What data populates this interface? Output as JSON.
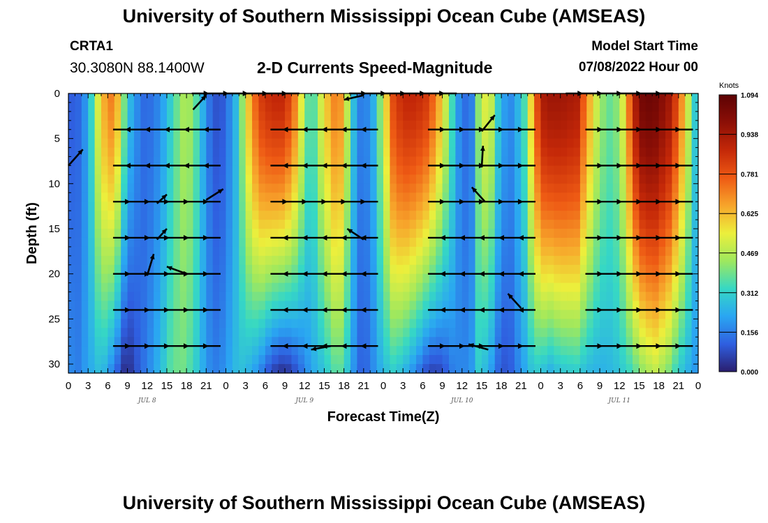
{
  "header": {
    "title": "University of Southern Mississippi Ocean Cube (AMSEAS)",
    "station": "CRTA1",
    "coordinates": "30.3080N  88.1400W",
    "subtitle": "2-D Currents Speed-Magnitude",
    "model_start_label": "Model Start Time",
    "model_start_value": "07/08/2022 Hour 00"
  },
  "footer": {
    "title": "University of Southern Mississippi Ocean Cube (AMSEAS)"
  },
  "chart_data": {
    "type": "heatmap",
    "title": "2-D Currents Speed-Magnitude",
    "xlabel": "Forecast Time(Z)",
    "ylabel": "Depth (ft)",
    "xlim": [
      0,
      96
    ],
    "ylim": [
      0,
      31
    ],
    "x_tick_labels": [
      "0",
      "3",
      "6",
      "9",
      "12",
      "15",
      "18",
      "21",
      "0",
      "3",
      "6",
      "9",
      "12",
      "15",
      "18",
      "21",
      "0",
      "3",
      "6",
      "9",
      "12",
      "15",
      "18",
      "21",
      "0",
      "3",
      "6",
      "9",
      "12",
      "15",
      "18",
      "21",
      "0"
    ],
    "y_ticks": [
      0,
      5,
      10,
      15,
      20,
      25,
      30
    ],
    "y_tick_labels": [
      "0",
      "5",
      "10",
      "15",
      "20",
      "25",
      "30"
    ],
    "date_labels": [
      {
        "hour": 12,
        "label": "JUL 8"
      },
      {
        "hour": 36,
        "label": "JUL 9"
      },
      {
        "hour": 60,
        "label": "JUL 10"
      },
      {
        "hour": 84,
        "label": "JUL 11"
      }
    ],
    "colorbar": {
      "title": "Knots",
      "ticks": [
        0.0,
        0.156,
        0.312,
        0.469,
        0.625,
        0.781,
        0.938,
        1.094
      ],
      "tick_labels": [
        "0.000",
        "0.156",
        "0.312",
        "0.469",
        "0.625",
        "0.781",
        "0.938",
        "1.094"
      ],
      "colors": [
        "#2a1e6e",
        "#2f5fe0",
        "#2aa6f2",
        "#36d8c4",
        "#9ee85e",
        "#ecef3c",
        "#f7a52b",
        "#ee5a14",
        "#c42808",
        "#8c0f06",
        "#5c0204"
      ]
    },
    "time_profile_hours": [
      0,
      1.5,
      3,
      5,
      7,
      8.5,
      9.5,
      11,
      12,
      14,
      15.5,
      17,
      18,
      19.5,
      21,
      22,
      23,
      24,
      26,
      27,
      29,
      31,
      33,
      34.5,
      36,
      37,
      39,
      41,
      42,
      43,
      44,
      45,
      46.5,
      48,
      49.5,
      51,
      53,
      54.5,
      56,
      57.5,
      59,
      60,
      61.5,
      62.5,
      64,
      65.5,
      67,
      68,
      69.5,
      71,
      72,
      73.5,
      75,
      77.5,
      79,
      81,
      83,
      84.5,
      86,
      87,
      88,
      89.5,
      91.5,
      93,
      95,
      96
    ],
    "speed_surface_knots": [
      0.1,
      0.12,
      0.22,
      0.62,
      0.74,
      0.4,
      0.25,
      0.14,
      0.12,
      0.18,
      0.3,
      0.42,
      0.48,
      0.36,
      0.18,
      0.1,
      0.08,
      0.12,
      0.3,
      0.55,
      0.82,
      0.88,
      0.88,
      0.72,
      0.45,
      0.3,
      0.58,
      0.74,
      0.62,
      0.35,
      0.18,
      0.14,
      0.24,
      0.5,
      0.8,
      0.88,
      0.88,
      0.84,
      0.72,
      0.5,
      0.26,
      0.12,
      0.16,
      0.42,
      0.58,
      0.3,
      0.16,
      0.2,
      0.35,
      0.7,
      0.92,
      0.95,
      0.95,
      0.92,
      0.7,
      0.44,
      0.36,
      0.52,
      0.85,
      1.02,
      1.06,
      1.04,
      0.95,
      0.78,
      0.4,
      0.2
    ],
    "speed_bottom_knots": [
      0.18,
      0.16,
      0.22,
      0.28,
      0.14,
      0.03,
      0.04,
      0.12,
      0.16,
      0.26,
      0.36,
      0.4,
      0.38,
      0.3,
      0.2,
      0.16,
      0.16,
      0.2,
      0.28,
      0.26,
      0.18,
      0.06,
      0.02,
      0.08,
      0.16,
      0.22,
      0.28,
      0.38,
      0.34,
      0.24,
      0.14,
      0.1,
      0.18,
      0.26,
      0.3,
      0.26,
      0.16,
      0.08,
      0.05,
      0.1,
      0.18,
      0.16,
      0.2,
      0.3,
      0.24,
      0.12,
      0.08,
      0.14,
      0.22,
      0.3,
      0.28,
      0.24,
      0.28,
      0.3,
      0.26,
      0.24,
      0.26,
      0.3,
      0.34,
      0.4,
      0.44,
      0.48,
      0.4,
      0.3,
      0.22,
      0.18
    ],
    "vector_depths_ft": [
      0,
      4,
      8,
      12,
      16,
      20,
      24,
      28
    ],
    "vectors": [
      {
        "hour": 27,
        "depth": 0,
        "direction": "east"
      },
      {
        "hour": 51,
        "depth": 0,
        "direction": "east"
      },
      {
        "hour": 84,
        "depth": 0,
        "direction": "east"
      },
      {
        "hour": 15,
        "depth": 4,
        "direction": "west"
      },
      {
        "hour": 39,
        "depth": 4,
        "direction": "west"
      },
      {
        "hour": 63,
        "depth": 4,
        "direction": "east"
      },
      {
        "hour": 87,
        "depth": 4,
        "direction": "east"
      },
      {
        "hour": 15,
        "depth": 8,
        "direction": "west"
      },
      {
        "hour": 39,
        "depth": 8,
        "direction": "west"
      },
      {
        "hour": 63,
        "depth": 8,
        "direction": "east"
      },
      {
        "hour": 87,
        "depth": 8,
        "direction": "east"
      },
      {
        "hour": 15,
        "depth": 12,
        "direction": "east"
      },
      {
        "hour": 39,
        "depth": 12,
        "direction": "east"
      },
      {
        "hour": 63,
        "depth": 12,
        "direction": "east"
      },
      {
        "hour": 87,
        "depth": 12,
        "direction": "east"
      },
      {
        "hour": 15,
        "depth": 16,
        "direction": "east"
      },
      {
        "hour": 39,
        "depth": 16,
        "direction": "west"
      },
      {
        "hour": 63,
        "depth": 16,
        "direction": "west"
      },
      {
        "hour": 87,
        "depth": 16,
        "direction": "east"
      },
      {
        "hour": 15,
        "depth": 20,
        "direction": "east"
      },
      {
        "hour": 39,
        "depth": 20,
        "direction": "west"
      },
      {
        "hour": 63,
        "depth": 20,
        "direction": "west"
      },
      {
        "hour": 87,
        "depth": 20,
        "direction": "east"
      },
      {
        "hour": 15,
        "depth": 24,
        "direction": "east"
      },
      {
        "hour": 39,
        "depth": 24,
        "direction": "west"
      },
      {
        "hour": 63,
        "depth": 24,
        "direction": "west"
      },
      {
        "hour": 87,
        "depth": 24,
        "direction": "east"
      },
      {
        "hour": 15,
        "depth": 28,
        "direction": "east"
      },
      {
        "hour": 39,
        "depth": 28,
        "direction": "west"
      },
      {
        "hour": 63,
        "depth": 28,
        "direction": "east"
      },
      {
        "hour": 87,
        "depth": 28,
        "direction": "east"
      }
    ],
    "diagonal_arrows": [
      {
        "hour": 0,
        "depth": 8,
        "to_hour": 2.2,
        "to_depth": 6.2
      },
      {
        "hour": 19,
        "depth": 1.8,
        "to_hour": 21,
        "to_depth": 0.2
      },
      {
        "hour": 21,
        "depth": 11.8,
        "to_hour": 23.6,
        "to_depth": 10.6
      },
      {
        "hour": 12,
        "depth": 20.2,
        "to_hour": 13,
        "to_depth": 17.8
      },
      {
        "hour": 13.5,
        "depth": 12.2,
        "to_hour": 15,
        "to_depth": 11.2
      },
      {
        "hour": 13.5,
        "depth": 16.2,
        "to_hour": 15,
        "to_depth": 15
      },
      {
        "hour": 18,
        "depth": 20,
        "to_hour": 15,
        "to_depth": 19.2
      },
      {
        "hour": 45,
        "depth": 0.2,
        "to_hour": 42,
        "to_depth": 0.7
      },
      {
        "hour": 45,
        "depth": 16.2,
        "to_hour": 42.5,
        "to_depth": 15
      },
      {
        "hour": 63.5,
        "depth": 12,
        "to_hour": 61.5,
        "to_depth": 10.4
      },
      {
        "hour": 63,
        "depth": 8.2,
        "to_hour": 63.2,
        "to_depth": 5.8
      },
      {
        "hour": 63,
        "depth": 4.2,
        "to_hour": 65,
        "to_depth": 2.4
      },
      {
        "hour": 69,
        "depth": 23.8,
        "to_hour": 67,
        "to_depth": 22.2
      },
      {
        "hour": 40,
        "depth": 28,
        "to_hour": 37,
        "to_depth": 28.4
      },
      {
        "hour": 64,
        "depth": 28.4,
        "to_hour": 61,
        "to_depth": 27.8
      }
    ]
  }
}
